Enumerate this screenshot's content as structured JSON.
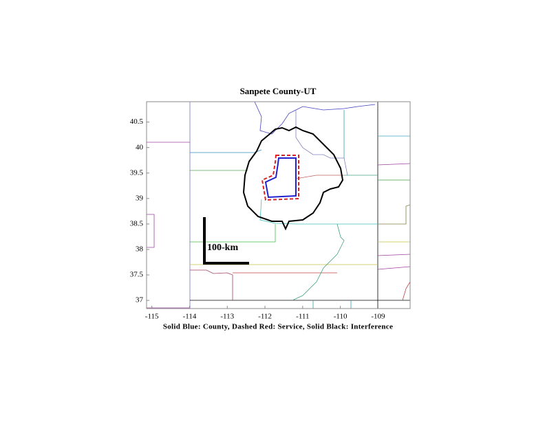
{
  "chart_data": {
    "type": "map",
    "title": "Sanpete County-UT",
    "x_label": "Solid Blue: County, Dashed Red: Service, Solid Black: Interference",
    "annotation": "100-km",
    "xlim": [
      -115.14,
      -108.15
    ],
    "ylim": [
      36.84,
      40.9
    ],
    "xticks": [
      -115,
      -114,
      -113,
      -112,
      -111,
      -110,
      -109
    ],
    "yticks": [
      37,
      37.5,
      38,
      38.5,
      39,
      39.5,
      40,
      40.5
    ]
  }
}
